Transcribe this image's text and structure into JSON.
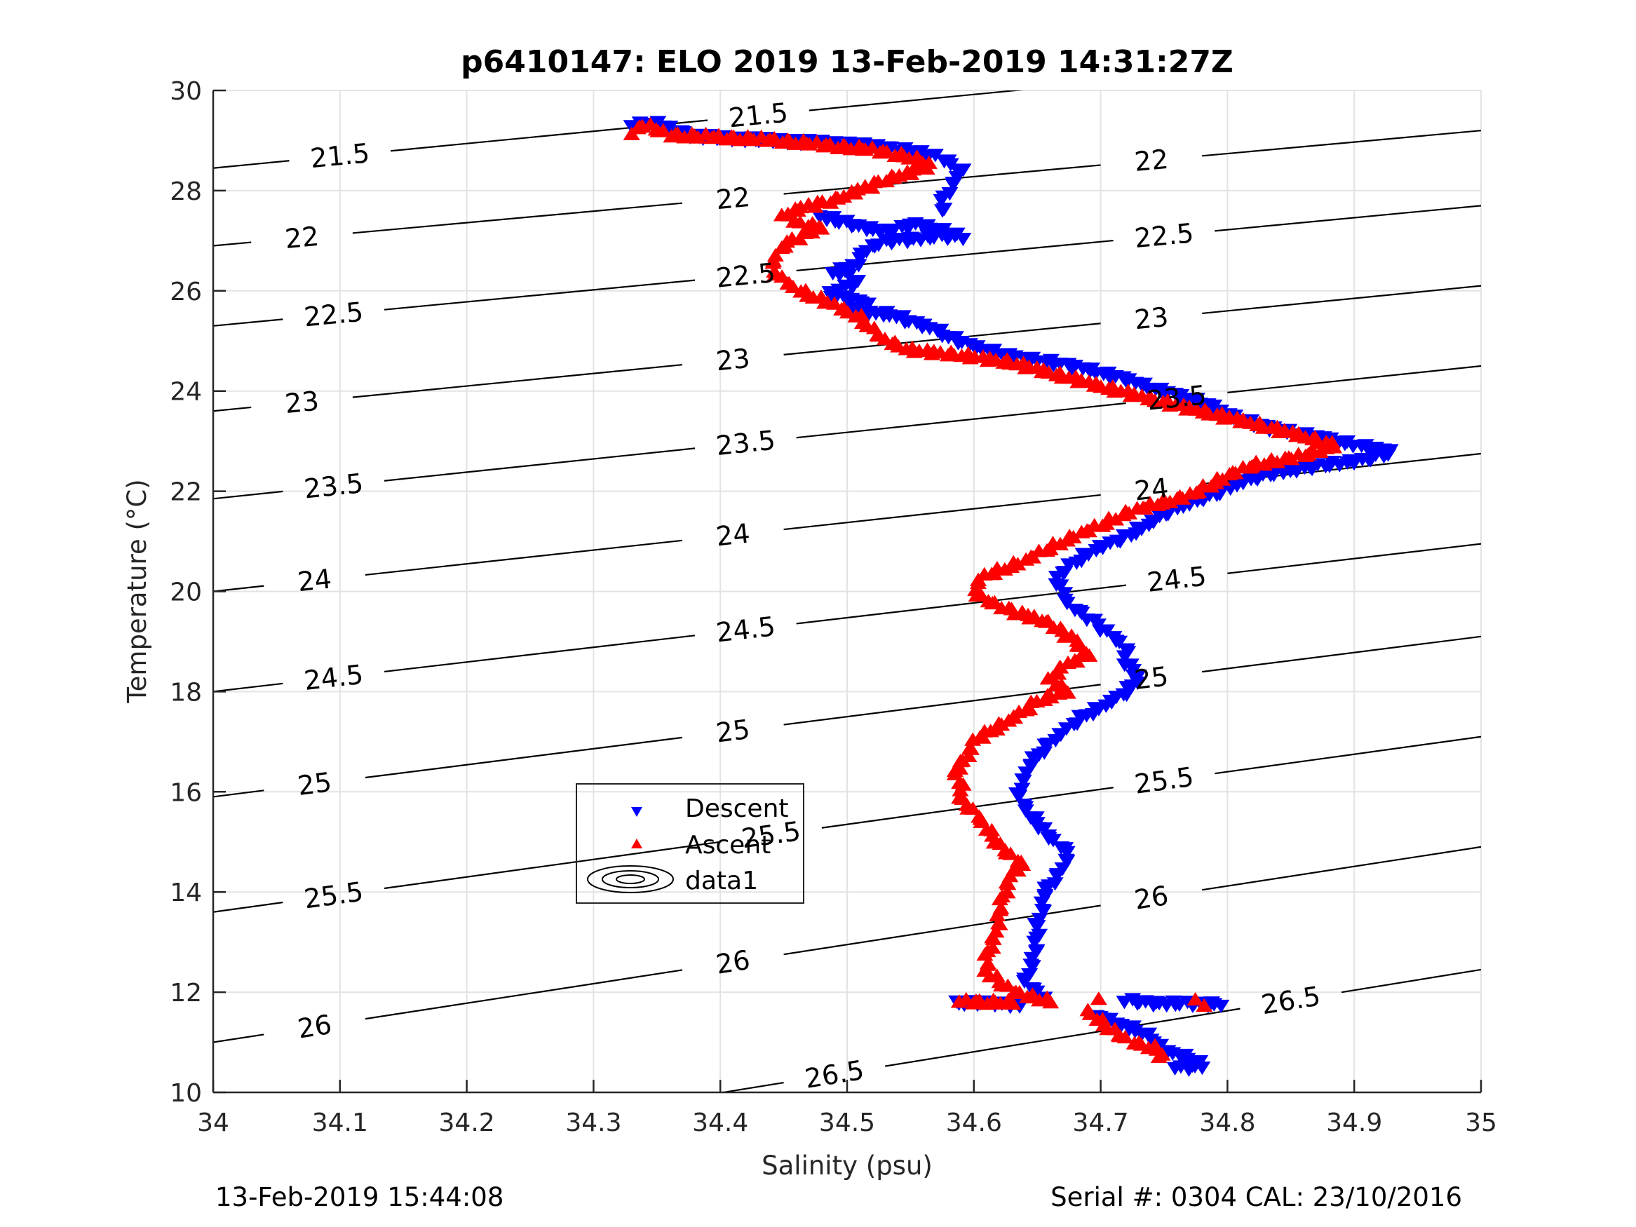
{
  "chart_data": {
    "type": "scatter",
    "title": "p6410147: ELO 2019 13-Feb-2019 14:31:27Z",
    "xlabel": "Salinity (psu)",
    "ylabel": "Temperature (°C)",
    "xlim": [
      34,
      35
    ],
    "ylim": [
      10,
      30
    ],
    "xticks": [
      "34",
      "34.1",
      "34.2",
      "34.3",
      "34.4",
      "34.5",
      "34.6",
      "34.7",
      "34.8",
      "34.9",
      "35"
    ],
    "yticks": [
      "10",
      "12",
      "14",
      "16",
      "18",
      "20",
      "22",
      "24",
      "26",
      "28",
      "30"
    ],
    "grid": true,
    "legend": {
      "placement": "lower-left-center",
      "entries": [
        {
          "label": "Descent",
          "marker": "triangle-down",
          "color": "#0000ff"
        },
        {
          "label": "Ascent",
          "marker": "triangle-up",
          "color": "#ff0000"
        },
        {
          "label": "data1",
          "marker": "contour"
        }
      ]
    },
    "series": [
      {
        "name": "Descent",
        "color": "#0000ff",
        "marker": "triangle-down",
        "points": [
          [
            34.33,
            29.35
          ],
          [
            34.34,
            29.35
          ],
          [
            34.35,
            29.35
          ],
          [
            34.38,
            29.1
          ],
          [
            34.42,
            29.05
          ],
          [
            34.46,
            29.0
          ],
          [
            34.5,
            28.95
          ],
          [
            34.54,
            28.85
          ],
          [
            34.57,
            28.7
          ],
          [
            34.58,
            28.6
          ],
          [
            34.59,
            28.4
          ],
          [
            34.585,
            28.2
          ],
          [
            34.58,
            28.0
          ],
          [
            34.575,
            27.8
          ],
          [
            34.575,
            27.6
          ],
          [
            34.48,
            27.5
          ],
          [
            34.51,
            27.3
          ],
          [
            34.53,
            27.2
          ],
          [
            34.555,
            27.35
          ],
          [
            34.59,
            27.1
          ],
          [
            34.57,
            27.1
          ],
          [
            34.55,
            27.05
          ],
          [
            34.53,
            27.0
          ],
          [
            34.515,
            26.85
          ],
          [
            34.51,
            26.65
          ],
          [
            34.505,
            26.5
          ],
          [
            34.49,
            26.4
          ],
          [
            34.5,
            26.3
          ],
          [
            34.51,
            26.2
          ],
          [
            34.495,
            26.05
          ],
          [
            34.485,
            25.95
          ],
          [
            34.5,
            25.85
          ],
          [
            34.515,
            25.8
          ],
          [
            34.5,
            25.6
          ],
          [
            34.535,
            25.55
          ],
          [
            34.55,
            25.4
          ],
          [
            34.57,
            25.25
          ],
          [
            34.58,
            25.1
          ],
          [
            34.6,
            24.9
          ],
          [
            34.63,
            24.7
          ],
          [
            34.66,
            24.6
          ],
          [
            34.69,
            24.45
          ],
          [
            34.72,
            24.25
          ],
          [
            34.75,
            24.0
          ],
          [
            34.78,
            23.8
          ],
          [
            34.8,
            23.55
          ],
          [
            34.83,
            23.3
          ],
          [
            34.87,
            23.1
          ],
          [
            34.9,
            22.95
          ],
          [
            34.93,
            22.8
          ],
          [
            34.91,
            22.65
          ],
          [
            34.88,
            22.55
          ],
          [
            34.84,
            22.4
          ],
          [
            34.81,
            22.2
          ],
          [
            34.79,
            21.95
          ],
          [
            34.76,
            21.7
          ],
          [
            34.74,
            21.4
          ],
          [
            34.72,
            21.1
          ],
          [
            34.695,
            20.85
          ],
          [
            34.68,
            20.6
          ],
          [
            34.665,
            20.3
          ],
          [
            34.67,
            20.0
          ],
          [
            34.675,
            19.75
          ],
          [
            34.69,
            19.5
          ],
          [
            34.705,
            19.2
          ],
          [
            34.72,
            18.9
          ],
          [
            34.72,
            18.6
          ],
          [
            34.73,
            18.3
          ],
          [
            34.72,
            18.0
          ],
          [
            34.7,
            17.7
          ],
          [
            34.685,
            17.5
          ],
          [
            34.67,
            17.2
          ],
          [
            34.66,
            17.0
          ],
          [
            34.645,
            16.6
          ],
          [
            34.64,
            16.3
          ],
          [
            34.635,
            16.0
          ],
          [
            34.64,
            15.7
          ],
          [
            34.65,
            15.4
          ],
          [
            34.66,
            15.1
          ],
          [
            34.675,
            14.8
          ],
          [
            34.67,
            14.5
          ],
          [
            34.665,
            14.3
          ],
          [
            34.655,
            14.0
          ],
          [
            34.655,
            13.7
          ],
          [
            34.65,
            13.4
          ],
          [
            34.65,
            13.1
          ],
          [
            34.648,
            12.8
          ],
          [
            34.645,
            12.5
          ],
          [
            34.64,
            12.2
          ],
          [
            34.655,
            11.95
          ],
          [
            34.585,
            11.8
          ],
          [
            34.615,
            11.8
          ],
          [
            34.637,
            11.75
          ],
          [
            34.72,
            11.85
          ],
          [
            34.74,
            11.8
          ],
          [
            34.795,
            11.78
          ],
          [
            34.695,
            11.5
          ],
          [
            34.7,
            11.55
          ],
          [
            34.71,
            11.4
          ],
          [
            34.725,
            11.3
          ],
          [
            34.74,
            11.1
          ],
          [
            34.75,
            10.85
          ],
          [
            34.77,
            10.7
          ],
          [
            34.78,
            10.55
          ],
          [
            34.76,
            10.5
          ]
        ]
      },
      {
        "name": "Ascent",
        "color": "#ff0000",
        "marker": "triangle-up",
        "points": [
          [
            34.33,
            29.15
          ],
          [
            34.34,
            29.3
          ],
          [
            34.36,
            29.1
          ],
          [
            34.4,
            29.05
          ],
          [
            34.44,
            29.0
          ],
          [
            34.48,
            28.9
          ],
          [
            34.52,
            28.8
          ],
          [
            34.55,
            28.65
          ],
          [
            34.565,
            28.5
          ],
          [
            34.55,
            28.35
          ],
          [
            34.53,
            28.2
          ],
          [
            34.51,
            28.0
          ],
          [
            34.49,
            27.8
          ],
          [
            34.465,
            27.65
          ],
          [
            34.45,
            27.5
          ],
          [
            34.46,
            27.35
          ],
          [
            34.48,
            27.25
          ],
          [
            34.465,
            27.1
          ],
          [
            34.45,
            26.9
          ],
          [
            34.445,
            26.7
          ],
          [
            34.44,
            26.5
          ],
          [
            34.445,
            26.3
          ],
          [
            34.455,
            26.1
          ],
          [
            34.47,
            25.9
          ],
          [
            34.49,
            25.7
          ],
          [
            34.51,
            25.45
          ],
          [
            34.52,
            25.2
          ],
          [
            34.53,
            25.0
          ],
          [
            34.55,
            24.8
          ],
          [
            34.59,
            24.7
          ],
          [
            34.63,
            24.55
          ],
          [
            34.66,
            24.35
          ],
          [
            34.69,
            24.15
          ],
          [
            34.72,
            23.95
          ],
          [
            34.76,
            23.7
          ],
          [
            34.81,
            23.4
          ],
          [
            34.85,
            23.15
          ],
          [
            34.885,
            22.9
          ],
          [
            34.86,
            22.7
          ],
          [
            34.82,
            22.5
          ],
          [
            34.8,
            22.3
          ],
          [
            34.79,
            22.15
          ],
          [
            34.77,
            21.9
          ],
          [
            34.74,
            21.7
          ],
          [
            34.72,
            21.55
          ],
          [
            34.7,
            21.3
          ],
          [
            34.68,
            21.1
          ],
          [
            34.66,
            20.85
          ],
          [
            34.64,
            20.6
          ],
          [
            34.62,
            20.4
          ],
          [
            34.605,
            20.25
          ],
          [
            34.6,
            20.0
          ],
          [
            34.61,
            19.8
          ],
          [
            34.63,
            19.6
          ],
          [
            34.66,
            19.35
          ],
          [
            34.68,
            19.0
          ],
          [
            34.69,
            18.7
          ],
          [
            34.67,
            18.5
          ],
          [
            34.66,
            18.2
          ],
          [
            34.675,
            18.0
          ],
          [
            34.65,
            17.8
          ],
          [
            34.64,
            17.6
          ],
          [
            34.62,
            17.3
          ],
          [
            34.6,
            17.0
          ],
          [
            34.595,
            16.7
          ],
          [
            34.585,
            16.4
          ],
          [
            34.59,
            16.1
          ],
          [
            34.59,
            15.8
          ],
          [
            34.6,
            15.6
          ],
          [
            34.615,
            15.1
          ],
          [
            34.62,
            14.9
          ],
          [
            34.63,
            14.7
          ],
          [
            34.64,
            14.5
          ],
          [
            34.63,
            14.4
          ],
          [
            34.625,
            14.0
          ],
          [
            34.62,
            13.7
          ],
          [
            34.62,
            13.4
          ],
          [
            34.615,
            13.0
          ],
          [
            34.61,
            12.7
          ],
          [
            34.61,
            12.4
          ],
          [
            34.62,
            12.2
          ],
          [
            34.63,
            12.0
          ],
          [
            34.66,
            11.8
          ],
          [
            34.59,
            11.8
          ],
          [
            34.63,
            11.78
          ],
          [
            34.7,
            11.85
          ],
          [
            34.775,
            11.8
          ],
          [
            34.78,
            11.75
          ],
          [
            34.69,
            11.6
          ],
          [
            34.7,
            11.4
          ],
          [
            34.71,
            11.2
          ],
          [
            34.72,
            11.05
          ],
          [
            34.73,
            10.95
          ],
          [
            34.745,
            10.85
          ],
          [
            34.75,
            10.75
          ],
          [
            34.745,
            10.65
          ]
        ]
      }
    ],
    "contours": {
      "name": "data1",
      "description": "Potential density anomaly isopycnals (sigma-theta)",
      "lines": [
        {
          "level": 21.5,
          "t_at_s34": 28.45,
          "t_at_s35": 30.9,
          "labels": [
            "21.5",
            "21.5"
          ]
        },
        {
          "level": 22,
          "t_at_s34": 26.9,
          "t_at_s35": 29.2,
          "labels": [
            "22",
            "22",
            "22"
          ]
        },
        {
          "level": 22.5,
          "t_at_s34": 25.3,
          "t_at_s35": 27.7,
          "labels": [
            "22.5",
            "22.5",
            "22.5"
          ]
        },
        {
          "level": 23,
          "t_at_s34": 23.6,
          "t_at_s35": 26.1,
          "labels": [
            "23",
            "23",
            "23"
          ]
        },
        {
          "level": 23.5,
          "t_at_s34": 21.85,
          "t_at_s35": 24.5,
          "labels": [
            "23.5",
            "23.5",
            "23.5"
          ]
        },
        {
          "level": 24,
          "t_at_s34": 20.0,
          "t_at_s35": 22.75,
          "labels": [
            "24",
            "24",
            "24"
          ]
        },
        {
          "level": 24.5,
          "t_at_s34": 18.0,
          "t_at_s35": 20.95,
          "labels": [
            "24.5",
            "24.5",
            "24.5"
          ]
        },
        {
          "level": 25,
          "t_at_s34": 15.9,
          "t_at_s35": 19.1,
          "labels": [
            "25",
            "25",
            "25"
          ]
        },
        {
          "level": 25.5,
          "t_at_s34": 13.6,
          "t_at_s35": 17.1,
          "labels": [
            "25.5",
            "25.5",
            "25.5"
          ]
        },
        {
          "level": 26,
          "t_at_s34": 11.0,
          "t_at_s35": 14.9,
          "labels": [
            "26",
            "26",
            "26"
          ]
        },
        {
          "level": 26.5,
          "t_at_s34": 8.35,
          "t_at_s35": 12.45,
          "labels": [
            "26.5",
            "26.5"
          ]
        }
      ]
    }
  },
  "footer": {
    "left": "13-Feb-2019 15:44:08",
    "right": "Serial #: 0304  CAL: 23/10/2016"
  }
}
